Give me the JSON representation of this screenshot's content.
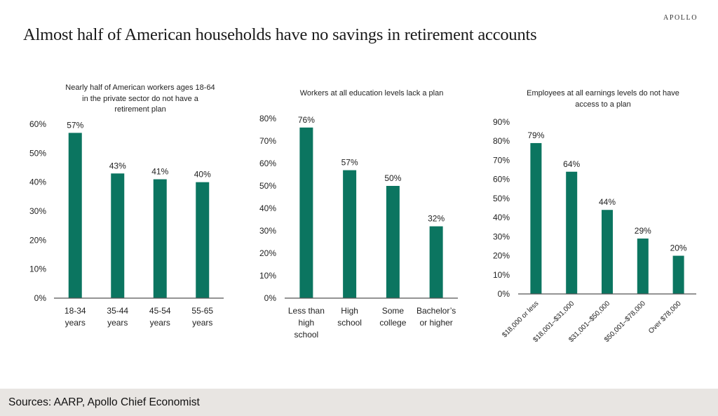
{
  "header": {
    "logo": "APOLLO",
    "title": "Almost half of American households have no savings in retirement accounts"
  },
  "colors": {
    "bar": "#0b7560",
    "axis": "#555555",
    "footer_bg": "#e8e5e2"
  },
  "chart_data": [
    {
      "type": "bar",
      "title_lines": [
        "Nearly half of American workers ages 18-64",
        "in the private sector do not have a",
        "retirement plan"
      ],
      "categories": [
        [
          "18-34",
          "years"
        ],
        [
          "35-44",
          "years"
        ],
        [
          "45-54",
          "years"
        ],
        [
          "55-65",
          "years"
        ]
      ],
      "values": [
        57,
        43,
        41,
        40
      ],
      "data_labels": [
        "57%",
        "43%",
        "41%",
        "40%"
      ],
      "yticks": [
        "0%",
        "10%",
        "20%",
        "30%",
        "40%",
        "50%",
        "60%"
      ],
      "ylim": [
        0,
        60
      ],
      "xlabel": "",
      "ylabel": "",
      "grid": false,
      "legend": "none"
    },
    {
      "type": "bar",
      "title_lines": [
        "Workers at all education levels lack a plan"
      ],
      "categories": [
        [
          "Less than",
          "high",
          "school"
        ],
        [
          "High",
          "school"
        ],
        [
          "Some",
          "college"
        ],
        [
          "Bachelor’s",
          "or higher"
        ]
      ],
      "values": [
        76,
        57,
        50,
        32
      ],
      "data_labels": [
        "76%",
        "57%",
        "50%",
        "32%"
      ],
      "yticks": [
        "0%",
        "10%",
        "20%",
        "30%",
        "40%",
        "50%",
        "60%",
        "70%",
        "80%"
      ],
      "ylim": [
        0,
        80
      ],
      "xlabel": "",
      "ylabel": "",
      "grid": false,
      "legend": "none"
    },
    {
      "type": "bar",
      "title_lines": [
        "Employees at all earnings levels do not have",
        "access to a plan"
      ],
      "categories": [
        [
          "$18,000 or less"
        ],
        [
          "$18,001–$31,000"
        ],
        [
          "$31,001–$50,000"
        ],
        [
          "$50,001–$78,000"
        ],
        [
          "Over $78,000"
        ]
      ],
      "values": [
        79,
        64,
        44,
        29,
        20
      ],
      "data_labels": [
        "79%",
        "64%",
        "44%",
        "29%",
        "20%"
      ],
      "yticks": [
        "0%",
        "10%",
        "20%",
        "30%",
        "40%",
        "50%",
        "60%",
        "70%",
        "80%",
        "90%"
      ],
      "ylim": [
        0,
        90
      ],
      "xlabel": "",
      "ylabel": "",
      "grid": false,
      "legend": "none",
      "rotated_category_labels": true
    }
  ],
  "footer": {
    "sources": "Sources: AARP, Apollo Chief Economist"
  }
}
